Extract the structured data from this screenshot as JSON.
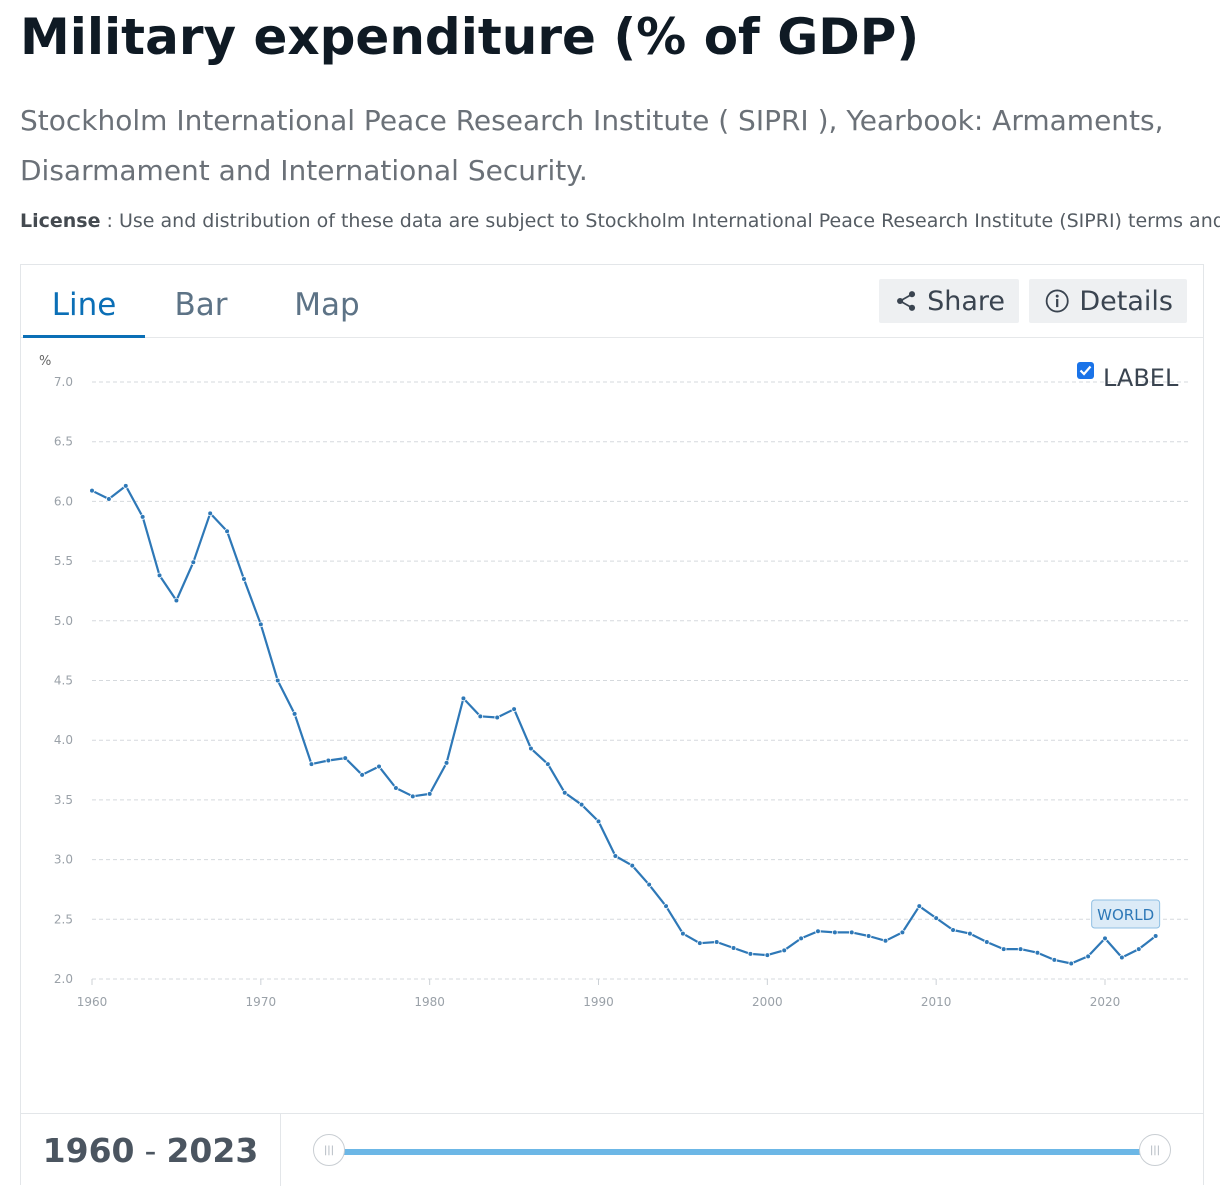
{
  "page": {
    "title": "Military expenditure (% of GDP)",
    "source": "Stockholm International Peace Research Institute ( SIPRI ), Yearbook: Armaments, Disarmament and International Security.",
    "license_label": "License",
    "license_text": " : Use and distribution of these data are subject to Stockholm International Peace Research Institute (SIPRI) terms and conditions."
  },
  "tabs": [
    {
      "label": "Line",
      "active": true
    },
    {
      "label": "Bar",
      "active": false
    },
    {
      "label": "Map",
      "active": false
    }
  ],
  "buttons": {
    "share": "Share",
    "details": "Details"
  },
  "icons": {
    "share": "share-icon",
    "details": "info-icon",
    "checkbox": "checkbox-checked-icon"
  },
  "label_toggle": {
    "text": "LABEL",
    "checked": true
  },
  "range": {
    "start": "1960",
    "end": "2023",
    "separator": "-"
  },
  "colors": {
    "accent": "#0b6fb6",
    "series": "#2e78b7",
    "slider": "#6cb7e6",
    "badge_bg": "#dcebf7"
  },
  "chart_data": {
    "type": "line",
    "ylabel": "%",
    "xlabel": "",
    "ylim": [
      2.0,
      7.0
    ],
    "xlim": [
      1960,
      2023
    ],
    "yticks": [
      2.0,
      2.5,
      3.0,
      3.5,
      4.0,
      4.5,
      5.0,
      5.5,
      6.0,
      6.5,
      7.0
    ],
    "xticks": [
      1960,
      1970,
      1980,
      1990,
      2000,
      2010,
      2020
    ],
    "grid": true,
    "series": [
      {
        "name": "WORLD",
        "x": [
          1960,
          1961,
          1962,
          1963,
          1964,
          1965,
          1966,
          1967,
          1968,
          1969,
          1970,
          1971,
          1972,
          1973,
          1974,
          1975,
          1976,
          1977,
          1978,
          1979,
          1980,
          1981,
          1982,
          1983,
          1984,
          1985,
          1986,
          1987,
          1988,
          1989,
          1990,
          1991,
          1992,
          1993,
          1994,
          1995,
          1996,
          1997,
          1998,
          1999,
          2000,
          2001,
          2002,
          2003,
          2004,
          2005,
          2006,
          2007,
          2008,
          2009,
          2010,
          2011,
          2012,
          2013,
          2014,
          2015,
          2016,
          2017,
          2018,
          2019,
          2020,
          2021,
          2022,
          2023
        ],
        "y": [
          6.09,
          6.02,
          6.13,
          5.87,
          5.38,
          5.17,
          5.49,
          5.9,
          5.75,
          5.35,
          4.97,
          4.5,
          4.22,
          3.8,
          3.83,
          3.85,
          3.71,
          3.78,
          3.6,
          3.53,
          3.55,
          3.81,
          4.35,
          4.2,
          4.19,
          4.26,
          3.93,
          3.8,
          3.56,
          3.46,
          3.32,
          3.03,
          2.95,
          2.79,
          2.61,
          2.38,
          2.3,
          2.31,
          2.26,
          2.21,
          2.2,
          2.24,
          2.34,
          2.4,
          2.39,
          2.39,
          2.36,
          2.32,
          2.39,
          2.61,
          2.51,
          2.41,
          2.38,
          2.31,
          2.25,
          2.25,
          2.22,
          2.16,
          2.13,
          2.19,
          2.34,
          2.18,
          2.25,
          2.36
        ]
      }
    ]
  }
}
